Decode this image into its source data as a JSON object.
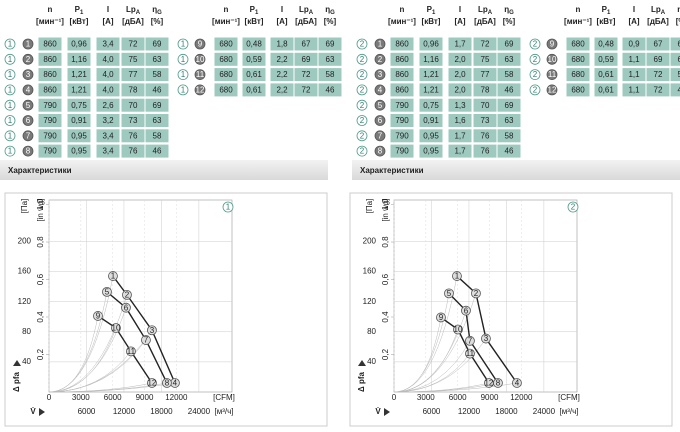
{
  "panels": [
    {
      "columns": [
        {
          "name": "n",
          "unit": "[мин⁻¹]"
        },
        {
          "name": "P",
          "sub": "1",
          "unit": "[кВт]"
        },
        {
          "name": "I",
          "unit": "[A]"
        },
        {
          "name": "Lp",
          "sub": "A",
          "unit": "[дБА]"
        },
        {
          "name": "η",
          "sub": "G",
          "unit": "[%]"
        }
      ],
      "variant": "1",
      "rows": [
        {
          "id": "1",
          "cells": [
            "860",
            "0,96",
            "3,4",
            "72",
            "69"
          ]
        },
        {
          "id": "2",
          "cells": [
            "860",
            "1,16",
            "4,0",
            "75",
            "63"
          ]
        },
        {
          "id": "3",
          "cells": [
            "860",
            "1,21",
            "4,0",
            "77",
            "58"
          ]
        },
        {
          "id": "4",
          "cells": [
            "860",
            "1,21",
            "4,0",
            "78",
            "46"
          ]
        },
        {
          "id": "5",
          "cells": [
            "790",
            "0,75",
            "2,6",
            "70",
            "69"
          ]
        },
        {
          "id": "6",
          "cells": [
            "790",
            "0,91",
            "3,2",
            "73",
            "63"
          ]
        },
        {
          "id": "7",
          "cells": [
            "790",
            "0,95",
            "3,4",
            "76",
            "58"
          ]
        },
        {
          "id": "8",
          "cells": [
            "790",
            "0,95",
            "3,4",
            "76",
            "46"
          ]
        },
        {
          "id": "9",
          "cells": [
            "680",
            "0,48",
            "1,8",
            "67",
            "69"
          ]
        },
        {
          "id": "10",
          "cells": [
            "680",
            "0,59",
            "2,2",
            "69",
            "63"
          ]
        },
        {
          "id": "11",
          "cells": [
            "680",
            "0,61",
            "2,2",
            "72",
            "58"
          ]
        },
        {
          "id": "12",
          "cells": [
            "680",
            "0,61",
            "2,2",
            "72",
            "46"
          ]
        }
      ],
      "section_title": "Характеристики"
    },
    {
      "columns": [
        {
          "name": "n",
          "unit": "[мин⁻¹]"
        },
        {
          "name": "P",
          "sub": "1",
          "unit": "[кВт]"
        },
        {
          "name": "I",
          "unit": "[A]"
        },
        {
          "name": "Lp",
          "sub": "A",
          "unit": "[дБА]"
        },
        {
          "name": "η",
          "sub": "G",
          "unit": "[%]"
        }
      ],
      "variant": "2",
      "rows": [
        {
          "id": "1",
          "cells": [
            "860",
            "0,96",
            "1,7",
            "72",
            "69"
          ]
        },
        {
          "id": "2",
          "cells": [
            "860",
            "1,16",
            "2,0",
            "75",
            "63"
          ]
        },
        {
          "id": "3",
          "cells": [
            "860",
            "1,21",
            "2,0",
            "77",
            "58"
          ]
        },
        {
          "id": "4",
          "cells": [
            "860",
            "1,21",
            "2,0",
            "78",
            "46"
          ]
        },
        {
          "id": "5",
          "cells": [
            "790",
            "0,75",
            "1,3",
            "70",
            "69"
          ]
        },
        {
          "id": "6",
          "cells": [
            "790",
            "0,91",
            "1,6",
            "73",
            "63"
          ]
        },
        {
          "id": "7",
          "cells": [
            "790",
            "0,95",
            "1,7",
            "76",
            "58"
          ]
        },
        {
          "id": "8",
          "cells": [
            "790",
            "0,95",
            "1,7",
            "76",
            "46"
          ]
        },
        {
          "id": "9",
          "cells": [
            "680",
            "0,48",
            "0,9",
            "67",
            "69"
          ]
        },
        {
          "id": "10",
          "cells": [
            "680",
            "0,59",
            "1,1",
            "69",
            "63"
          ]
        },
        {
          "id": "11",
          "cells": [
            "680",
            "0,61",
            "1,1",
            "72",
            "58"
          ]
        },
        {
          "id": "12",
          "cells": [
            "680",
            "0,61",
            "1,1",
            "72",
            "46"
          ]
        }
      ],
      "section_title": "Характеристики"
    }
  ],
  "chart_data": [
    {
      "type": "line",
      "badge": "1",
      "y_unit": "[Па]",
      "y2_unit": "[in wg]",
      "x_unit": "[м³/ч]",
      "x2_unit": "[CFM]",
      "y_label": "Δ pfa",
      "x_label": "V̇",
      "xlim": [
        0,
        29300
      ],
      "ylim": [
        0,
        255
      ],
      "xticks": [
        6000,
        12000,
        18000,
        24000
      ],
      "x2ticks": [
        {
          "value": 0,
          "label": "0"
        },
        {
          "value": 5097,
          "label": "3000"
        },
        {
          "value": 10194,
          "label": "6000"
        },
        {
          "value": 15291,
          "label": "9000"
        },
        {
          "value": 20388,
          "label": "12000"
        }
      ],
      "yticks": [
        40,
        80,
        120,
        160,
        200
      ],
      "y2ticks": [
        {
          "value": 49.8,
          "label": "0,2"
        },
        {
          "value": 99.6,
          "label": "0,4"
        },
        {
          "value": 149.4,
          "label": "0,6"
        },
        {
          "value": 199.2,
          "label": "0,8"
        },
        {
          "value": 249,
          "label": "1,0"
        }
      ],
      "grid": true,
      "series": [
        {
          "color": "#222222",
          "x": [
            10240,
            12480,
            16480,
            20160
          ],
          "values": [
            154,
            129,
            82,
            12
          ],
          "labels": [
            "1",
            "2",
            "3",
            "4"
          ]
        },
        {
          "color": "#222222",
          "x": [
            9280,
            12320,
            15520,
            18880
          ],
          "values": [
            133,
            112,
            69,
            12
          ],
          "labels": [
            "5",
            "6",
            "7",
            "8"
          ]
        },
        {
          "color": "#222222",
          "x": [
            7840,
            10720,
            13120,
            16480
          ],
          "values": [
            101,
            85,
            54,
            12
          ],
          "labels": [
            "9",
            "10",
            "11",
            "12"
          ]
        }
      ]
    },
    {
      "type": "line",
      "badge": "2",
      "y_unit": "[Па]",
      "y2_unit": "[in wg]",
      "x_unit": "[м³/ч]",
      "x2_unit": "[CFM]",
      "y_label": "Δ pfa",
      "x_label": "V̇",
      "xlim": [
        0,
        29300
      ],
      "ylim": [
        0,
        255
      ],
      "xticks": [
        6000,
        12000,
        18000,
        24000
      ],
      "x2ticks": [
        {
          "value": 0,
          "label": "0"
        },
        {
          "value": 5097,
          "label": "3000"
        },
        {
          "value": 10194,
          "label": "6000"
        },
        {
          "value": 15291,
          "label": "9000"
        },
        {
          "value": 20388,
          "label": "12000"
        }
      ],
      "yticks": [
        40,
        80,
        120,
        160,
        200
      ],
      "y2ticks": [
        {
          "value": 49.8,
          "label": "0,2"
        },
        {
          "value": 99.6,
          "label": "0,4"
        },
        {
          "value": 149.4,
          "label": "0,6"
        },
        {
          "value": 199.2,
          "label": "0,8"
        },
        {
          "value": 249,
          "label": "1,0"
        }
      ],
      "grid": true,
      "series": [
        {
          "color": "#222222",
          "x": [
            10080,
            13120,
            14720,
            19680
          ],
          "values": [
            154,
            131,
            71,
            12
          ],
          "labels": [
            "1",
            "2",
            "3",
            "4"
          ]
        },
        {
          "color": "#222222",
          "x": [
            8800,
            11520,
            12160,
            16640
          ],
          "values": [
            131,
            108,
            68,
            12
          ],
          "labels": [
            "5",
            "6",
            "7",
            "8"
          ]
        },
        {
          "color": "#222222",
          "x": [
            7520,
            10240,
            12160,
            15200
          ],
          "values": [
            99,
            83,
            51,
            12
          ],
          "labels": [
            "9",
            "10",
            "11",
            "12"
          ]
        }
      ]
    }
  ]
}
